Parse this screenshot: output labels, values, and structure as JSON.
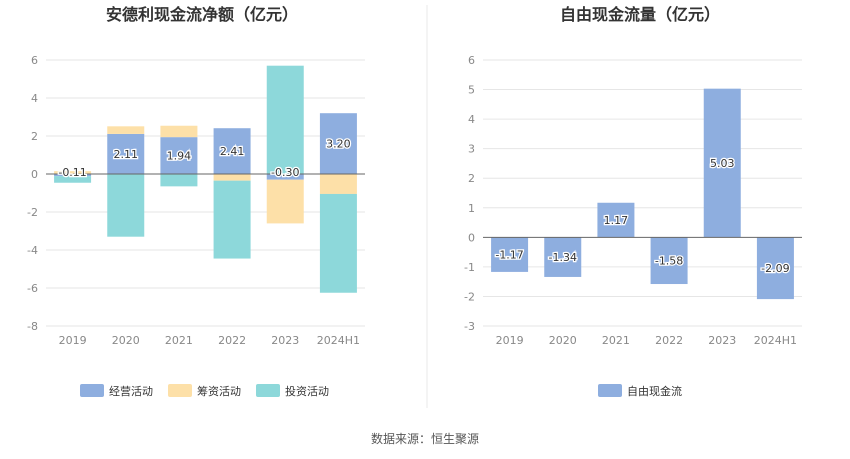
{
  "source": "数据来源：恒生聚源",
  "colors": {
    "operating": "#8eaedf",
    "financing": "#fde0a8",
    "investing": "#8dd8da",
    "fcf": "#8eaedf",
    "grid": "#e6e6e6",
    "zero": "#666666",
    "divider": "#e8e8e8"
  },
  "chart_data": [
    {
      "type": "bar",
      "stacked": true,
      "title": "安德利现金流净额（亿元）",
      "categories": [
        "2019",
        "2020",
        "2021",
        "2022",
        "2023",
        "2024H1"
      ],
      "ylim": [
        -8,
        6
      ],
      "yticks": [
        6,
        4,
        2,
        0,
        -2,
        -4,
        -6,
        -8
      ],
      "series": [
        {
          "name": "经营活动",
          "key": "operating",
          "values": [
            -0.11,
            2.11,
            1.94,
            2.41,
            -0.3,
            3.2
          ]
        },
        {
          "name": "筹资活动",
          "key": "financing",
          "values": [
            0.15,
            0.4,
            0.6,
            -0.35,
            -2.3,
            -1.05
          ]
        },
        {
          "name": "投资活动",
          "key": "investing",
          "values": [
            -0.35,
            -3.3,
            -0.65,
            -4.1,
            5.7,
            -5.2
          ]
        }
      ],
      "labels": [
        "-0.11",
        "2.11",
        "1.94",
        "2.41",
        "-0.30",
        "3.20"
      ]
    },
    {
      "type": "bar",
      "title": "自由现金流量（亿元）",
      "categories": [
        "2019",
        "2020",
        "2021",
        "2022",
        "2023",
        "2024H1"
      ],
      "ylim": [
        -3,
        6
      ],
      "yticks": [
        6,
        5,
        4,
        3,
        2,
        1,
        0,
        -1,
        -2,
        -3
      ],
      "series": [
        {
          "name": "自由现金流",
          "key": "fcf",
          "values": [
            -1.17,
            -1.34,
            1.17,
            -1.58,
            5.03,
            -2.09
          ]
        }
      ],
      "labels": [
        "-1.17",
        "-1.34",
        "1.17",
        "-1.58",
        "5.03",
        "-2.09"
      ]
    }
  ]
}
